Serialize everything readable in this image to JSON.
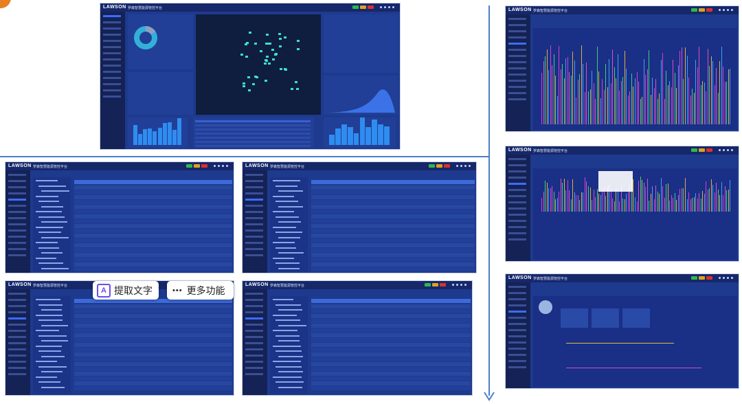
{
  "brand": "LAWSON",
  "app_title": "罗森智慧能源管控平台",
  "toolbar": {
    "extract_text": "提取文字",
    "more_functions": "更多功能"
  }
}
